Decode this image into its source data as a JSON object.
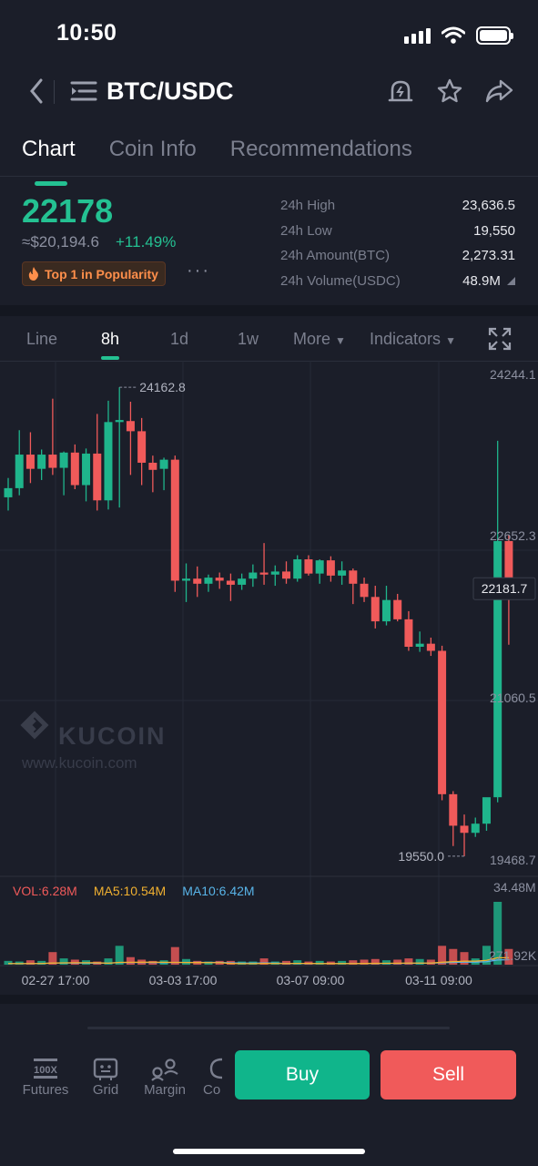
{
  "status_bar": {
    "time": "10:50"
  },
  "header": {
    "pair": "BTC/USDC"
  },
  "tabs": [
    {
      "label": "Chart",
      "active": true
    },
    {
      "label": "Coin Info",
      "active": false
    },
    {
      "label": "Recommendations",
      "active": false
    }
  ],
  "ticker": {
    "price": "22178",
    "fiat": "≈$20,194.6",
    "change": "+11.49%",
    "badge": "Top 1 in Popularity",
    "more": "···"
  },
  "stats": [
    {
      "label": "24h High",
      "value": "23,636.5"
    },
    {
      "label": "24h Low",
      "value": "19,550"
    },
    {
      "label": "24h Amount(BTC)",
      "value": "2,273.31"
    },
    {
      "label": "24h Volume(USDC)",
      "value": "48.9M"
    }
  ],
  "intervals": {
    "line": "Line",
    "h8": "8h",
    "d1": "1d",
    "w1": "1w",
    "more": "More",
    "indicators": "Indicators"
  },
  "watermark": {
    "brand": "KUCOIN",
    "url": "www.kucoin.com"
  },
  "chart_data": {
    "type": "candlestick",
    "price_ticks": [
      "24244.1",
      "22652.3",
      "21060.5",
      "19468.7"
    ],
    "volume_ticks": [
      "34.48M",
      "271.92K"
    ],
    "x_ticks": [
      "02-27 17:00",
      "03-03 17:00",
      "03-07 09:00",
      "03-11 09:00"
    ],
    "max_label": "24162.8",
    "min_label": "19550.0",
    "last_price": "22181.7",
    "legend": {
      "vol": "VOL:6.28M",
      "ma5": "MA5:10.54M",
      "ma10": "MA10:6.42M"
    },
    "colors": {
      "up": "#1fb58c",
      "down": "#f05a5a",
      "ma5": "#f0b030",
      "ma10": "#58b4e8"
    },
    "candles": [
      {
        "o": 23080,
        "h": 23270,
        "l": 22950,
        "c": 23170
      },
      {
        "o": 23170,
        "h": 23740,
        "l": 23100,
        "c": 23500
      },
      {
        "o": 23500,
        "h": 23720,
        "l": 23220,
        "c": 23360
      },
      {
        "o": 23360,
        "h": 23550,
        "l": 23250,
        "c": 23500
      },
      {
        "o": 23500,
        "h": 24050,
        "l": 23300,
        "c": 23370
      },
      {
        "o": 23370,
        "h": 23530,
        "l": 23100,
        "c": 23520
      },
      {
        "o": 23520,
        "h": 23600,
        "l": 23160,
        "c": 23200
      },
      {
        "o": 23200,
        "h": 23560,
        "l": 23040,
        "c": 23510
      },
      {
        "o": 23510,
        "h": 23900,
        "l": 22950,
        "c": 23050
      },
      {
        "o": 23050,
        "h": 24030,
        "l": 22960,
        "c": 23820
      },
      {
        "o": 23820,
        "h": 24162.8,
        "l": 22980,
        "c": 23840
      },
      {
        "o": 23830,
        "h": 24020,
        "l": 23300,
        "c": 23730
      },
      {
        "o": 23730,
        "h": 23860,
        "l": 23200,
        "c": 23420
      },
      {
        "o": 23420,
        "h": 23490,
        "l": 23130,
        "c": 23350
      },
      {
        "o": 23360,
        "h": 23470,
        "l": 23150,
        "c": 23450
      },
      {
        "o": 23450,
        "h": 23490,
        "l": 22150,
        "c": 22260
      },
      {
        "o": 22260,
        "h": 22430,
        "l": 22050,
        "c": 22280
      },
      {
        "o": 22280,
        "h": 22400,
        "l": 22100,
        "c": 22230
      },
      {
        "o": 22230,
        "h": 22320,
        "l": 22150,
        "c": 22290
      },
      {
        "o": 22290,
        "h": 22340,
        "l": 22180,
        "c": 22260
      },
      {
        "o": 22260,
        "h": 22330,
        "l": 22060,
        "c": 22220
      },
      {
        "o": 22220,
        "h": 22330,
        "l": 22170,
        "c": 22280
      },
      {
        "o": 22280,
        "h": 22420,
        "l": 22200,
        "c": 22340
      },
      {
        "o": 22340,
        "h": 22630,
        "l": 22220,
        "c": 22320
      },
      {
        "o": 22320,
        "h": 22410,
        "l": 22210,
        "c": 22350
      },
      {
        "o": 22350,
        "h": 22450,
        "l": 22230,
        "c": 22280
      },
      {
        "o": 22280,
        "h": 22510,
        "l": 22250,
        "c": 22470
      },
      {
        "o": 22470,
        "h": 22510,
        "l": 22310,
        "c": 22330
      },
      {
        "o": 22330,
        "h": 22470,
        "l": 22230,
        "c": 22460
      },
      {
        "o": 22460,
        "h": 22500,
        "l": 22250,
        "c": 22310
      },
      {
        "o": 22310,
        "h": 22450,
        "l": 22220,
        "c": 22360
      },
      {
        "o": 22360,
        "h": 22380,
        "l": 22030,
        "c": 22230
      },
      {
        "o": 22230,
        "h": 22290,
        "l": 22050,
        "c": 22100
      },
      {
        "o": 22100,
        "h": 22210,
        "l": 21790,
        "c": 21860
      },
      {
        "o": 21860,
        "h": 22210,
        "l": 21820,
        "c": 22070
      },
      {
        "o": 22070,
        "h": 22130,
        "l": 21860,
        "c": 21880
      },
      {
        "o": 21880,
        "h": 21960,
        "l": 21570,
        "c": 21610
      },
      {
        "o": 21610,
        "h": 21760,
        "l": 21560,
        "c": 21640
      },
      {
        "o": 21640,
        "h": 21700,
        "l": 21520,
        "c": 21570
      },
      {
        "o": 21570,
        "h": 21620,
        "l": 20100,
        "c": 20160
      },
      {
        "o": 20160,
        "h": 20190,
        "l": 19650,
        "c": 19850
      },
      {
        "o": 19850,
        "h": 19960,
        "l": 19550,
        "c": 19780
      },
      {
        "o": 19780,
        "h": 19930,
        "l": 19740,
        "c": 19870
      },
      {
        "o": 19870,
        "h": 20120,
        "l": 19800,
        "c": 20130
      },
      {
        "o": 20130,
        "h": 23636.5,
        "l": 20080,
        "c": 22650
      },
      {
        "o": 22650,
        "h": 22710,
        "l": 21630,
        "c": 22181.7
      }
    ],
    "volumes": [
      0.06,
      0.05,
      0.07,
      0.06,
      0.2,
      0.1,
      0.08,
      0.07,
      0.05,
      0.1,
      0.3,
      0.12,
      0.08,
      0.06,
      0.07,
      0.28,
      0.09,
      0.06,
      0.05,
      0.06,
      0.06,
      0.05,
      0.05,
      0.1,
      0.05,
      0.06,
      0.07,
      0.05,
      0.06,
      0.05,
      0.06,
      0.07,
      0.08,
      0.09,
      0.07,
      0.08,
      0.1,
      0.09,
      0.08,
      0.3,
      0.25,
      0.2,
      0.1,
      0.3,
      1.0,
      0.25
    ]
  },
  "toolbar": {
    "futures": "Futures",
    "futures_icon_text": "100X",
    "grid": "Grid",
    "margin": "Margin",
    "copy": "Co",
    "buy": "Buy",
    "sell": "Sell"
  }
}
